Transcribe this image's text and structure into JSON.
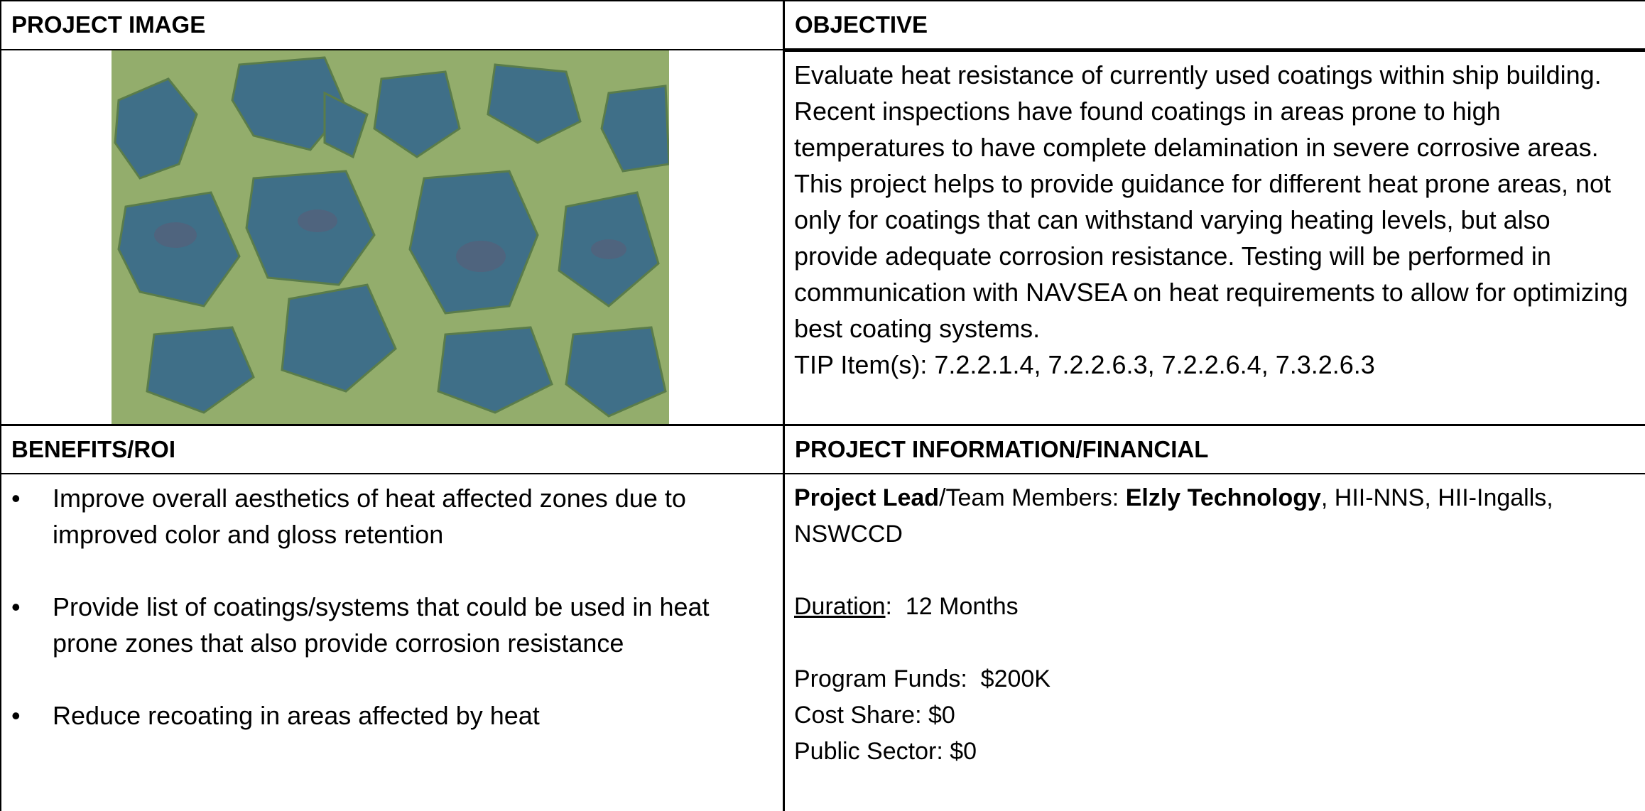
{
  "table": {
    "headers": {
      "project_image": "PROJECT IMAGE",
      "objective": "OBJECTIVE",
      "benefits": "BENEFITS/ROI",
      "project_info": "PROJECT INFORMATION/FINANCIAL"
    },
    "objective": {
      "text": "Evaluate heat resistance of currently used coatings within ship building. Recent inspections have found coatings in areas prone to high temperatures to have complete delamination in severe corrosive areas.  This project helps to provide guidance for different heat prone areas, not only for coatings that can withstand varying heating levels, but also provide adequate corrosion resistance. Testing will be performed in communication with NAVSEA on heat requirements to allow for optimizing best coating systems.",
      "tip_items": "TIP Item(s): 7.2.2.1.4, 7.2.2.6.3, 7.2.2.6.4, 7.3.2.6.3"
    },
    "benefits": [
      "Improve overall aesthetics of heat affected zones due to improved color and gloss retention",
      "Provide list of coatings/systems that could be used in heat prone zones that also provide corrosion resistance",
      "Reduce recoating in areas affected by heat"
    ],
    "project_info": {
      "lead_label": "Project Lead",
      "team_label": "/Team Members: ",
      "lead": "Elzly Technology",
      "team": ", HII-NNS, HII-Ingalls, NSWCCD",
      "duration_label": "Duration",
      "duration": ":  12 Months",
      "program_funds": "Program Funds:  $200K",
      "cost_share": "Cost Share: $0",
      "public_sector": "Public Sector: $0"
    }
  }
}
